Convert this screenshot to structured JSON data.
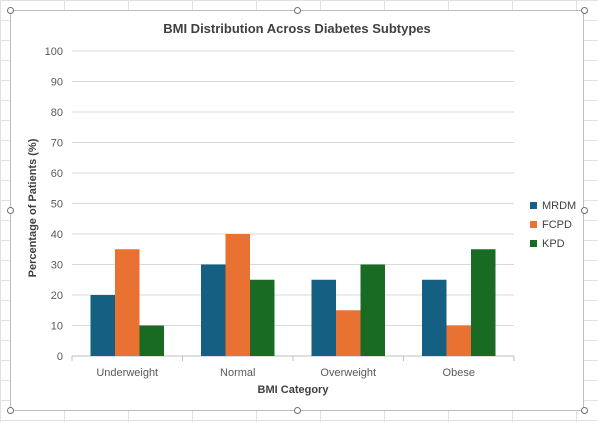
{
  "chart_data": {
    "type": "bar",
    "title": "BMI Distribution Across Diabetes Subtypes",
    "xlabel": "BMI Category",
    "ylabel": "Percentage of Patients (%)",
    "ylim": [
      0,
      100
    ],
    "yticks": [
      0,
      10,
      20,
      30,
      40,
      50,
      60,
      70,
      80,
      90,
      100
    ],
    "categories": [
      "Underweight",
      "Normal",
      "Overweight",
      "Obese"
    ],
    "series": [
      {
        "name": "MRDM",
        "color": "#156082",
        "values": [
          20,
          30,
          25,
          25
        ]
      },
      {
        "name": "FCPD",
        "color": "#E97132",
        "values": [
          35,
          40,
          15,
          10
        ]
      },
      {
        "name": "KPD",
        "color": "#196B24",
        "values": [
          10,
          25,
          30,
          35
        ]
      }
    ],
    "grid": true,
    "legend_position": "right"
  }
}
